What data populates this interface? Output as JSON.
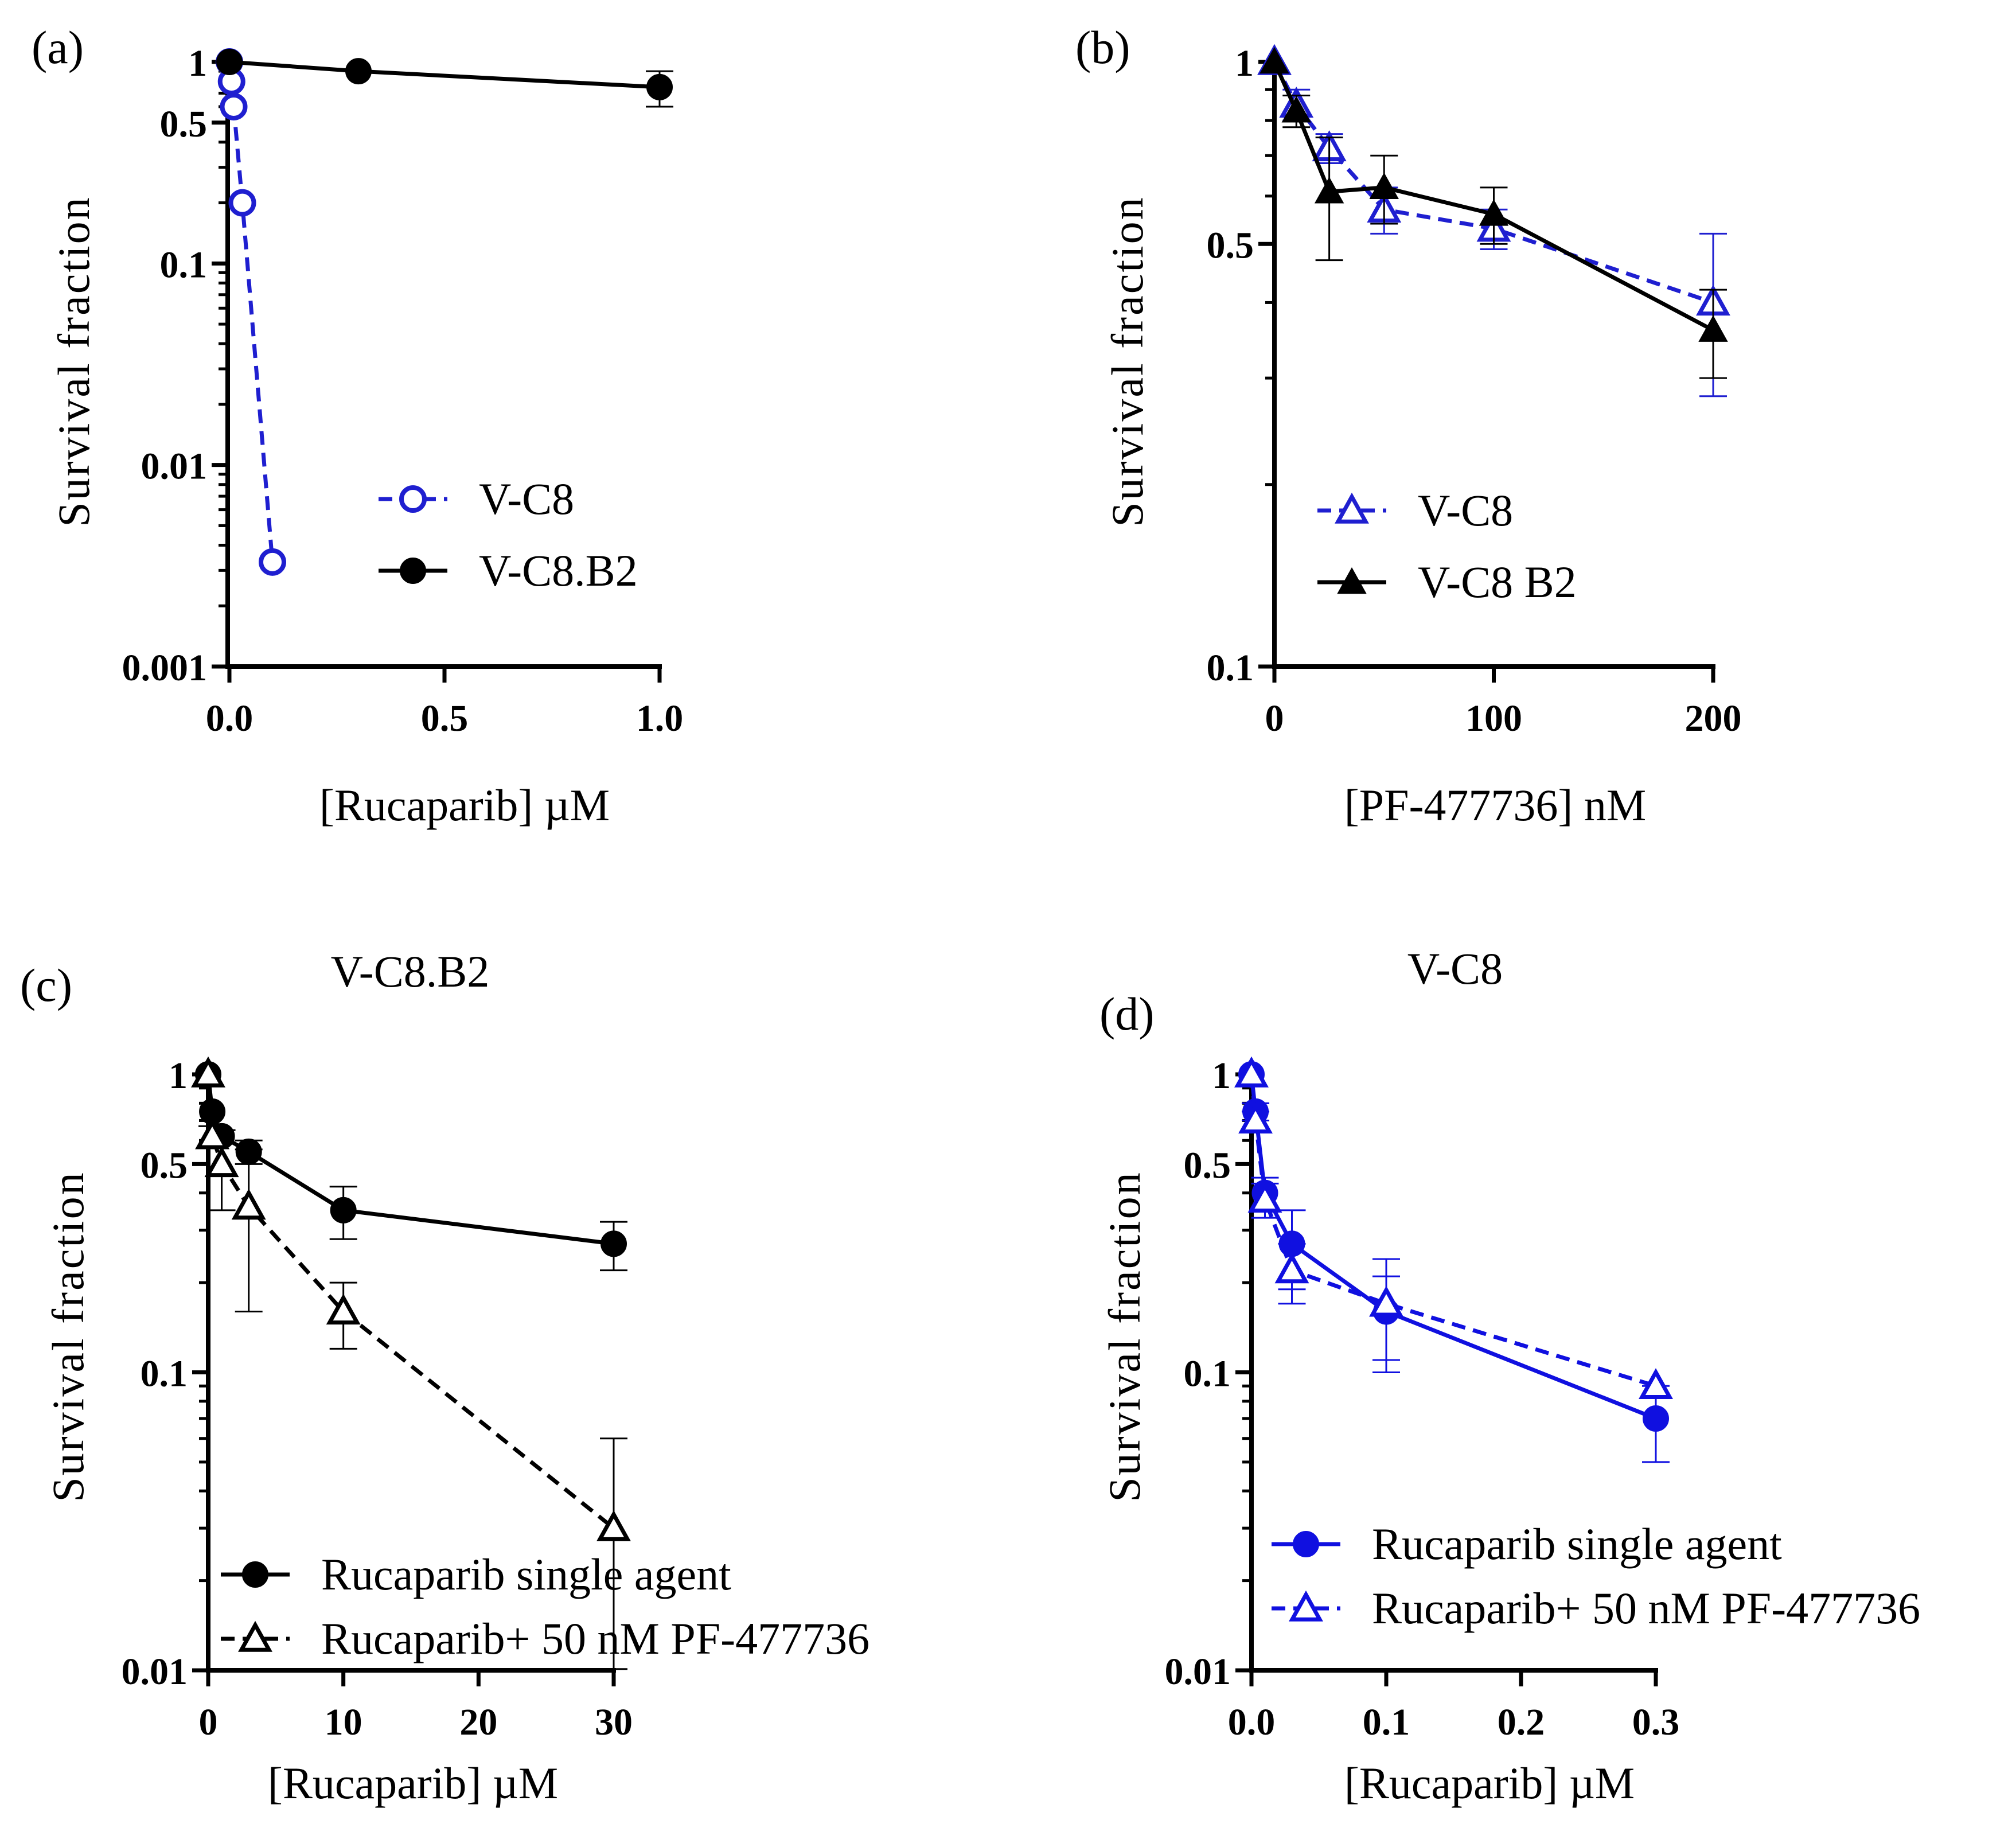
{
  "chart_data": [
    {
      "id": "a",
      "type": "line",
      "panel_label": "(a)",
      "title": "",
      "xlabel": "[Rucaparib] µM",
      "ylabel": "Survival fraction",
      "xscale": "linear",
      "yscale": "log",
      "xlim": [
        0,
        1.0
      ],
      "ylim": [
        0.001,
        1
      ],
      "xticks": [
        0.0,
        0.5,
        1.0
      ],
      "xtick_labels": [
        "0.0",
        "0.5",
        "1.0"
      ],
      "yticks": [
        0.001,
        0.01,
        0.1,
        0.5,
        1
      ],
      "ytick_labels": [
        "0.001",
        "0.01",
        "0.1",
        "0.5",
        "1"
      ],
      "legend_position": "center-right",
      "series": [
        {
          "name": "V-C8",
          "color": "#1f1fd0",
          "dashed": true,
          "marker": "open-circle",
          "x": [
            0,
            0.005,
            0.01,
            0.03,
            0.1
          ],
          "y": [
            1,
            0.8,
            0.6,
            0.2,
            0.0033
          ],
          "err": [
            0,
            0,
            0,
            0,
            0
          ]
        },
        {
          "name": "V-C8.B2",
          "color": "#000000",
          "dashed": false,
          "marker": "filled-circle",
          "x": [
            0,
            0.3,
            1.0
          ],
          "y": [
            1,
            0.9,
            0.75
          ],
          "err": [
            0,
            0,
            0.15
          ]
        }
      ]
    },
    {
      "id": "b",
      "type": "line",
      "panel_label": "(b)",
      "title": "",
      "xlabel": "[PF-477736] nM",
      "ylabel": "Survival fraction",
      "xscale": "linear",
      "yscale": "log",
      "xlim": [
        0,
        200
      ],
      "ylim": [
        0.1,
        1
      ],
      "xticks": [
        0,
        100,
        200
      ],
      "xtick_labels": [
        "0",
        "100",
        "200"
      ],
      "yticks": [
        0.1,
        0.5,
        1
      ],
      "ytick_labels": [
        "0.1",
        "0.5",
        "1"
      ],
      "legend_position": "center-left",
      "series": [
        {
          "name": "V-C8",
          "color": "#1f1fd0",
          "dashed": true,
          "marker": "open-triangle",
          "x": [
            0,
            10,
            25,
            50,
            100,
            200
          ],
          "y": [
            1,
            0.85,
            0.72,
            0.57,
            0.53,
            0.4
          ],
          "err": [
            0,
            0.05,
            0.04,
            0.05,
            0.04,
            0.12
          ]
        },
        {
          "name": "V-C8 B2",
          "color": "#000000",
          "dashed": false,
          "marker": "filled-triangle",
          "x": [
            0,
            10,
            25,
            50,
            100,
            200
          ],
          "y": [
            1,
            0.83,
            0.61,
            0.62,
            0.56,
            0.36
          ],
          "err": [
            0,
            0.05,
            0.14,
            0.08,
            0.06,
            0.06
          ]
        }
      ]
    },
    {
      "id": "c",
      "type": "line",
      "panel_label": "(c)",
      "title": "V-C8.B2",
      "xlabel": "[Rucaparib] µM",
      "ylabel": "Survival fraction",
      "xscale": "linear",
      "yscale": "log",
      "xlim": [
        0,
        30
      ],
      "ylim": [
        0.01,
        1
      ],
      "xticks": [
        0,
        10,
        20,
        30
      ],
      "xtick_labels": [
        "0",
        "10",
        "20",
        "30"
      ],
      "yticks": [
        0.01,
        0.1,
        0.5,
        1
      ],
      "ytick_labels": [
        "0.01",
        "0.1",
        "0.5",
        "1"
      ],
      "legend_position": "bottom-left",
      "series": [
        {
          "name": "Rucaparib single agent",
          "color": "#000000",
          "dashed": false,
          "marker": "filled-circle",
          "x": [
            0,
            0.3,
            1,
            3,
            10,
            30
          ],
          "y": [
            1,
            0.75,
            0.62,
            0.55,
            0.35,
            0.27
          ],
          "err": [
            0,
            0,
            0,
            0.05,
            0.07,
            0.05
          ]
        },
        {
          "name": "Rucaparib+ 50 nM PF-477736",
          "color": "#000000",
          "dashed": true,
          "marker": "open-triangle",
          "x": [
            0,
            0.3,
            1,
            3,
            10,
            30
          ],
          "y": [
            1,
            0.62,
            0.5,
            0.36,
            0.16,
            0.03
          ],
          "err": [
            0,
            0.05,
            0.15,
            0.2,
            0.04,
            0.03
          ]
        }
      ]
    },
    {
      "id": "d",
      "type": "line",
      "panel_label": "(d)",
      "title": "V-C8",
      "xlabel": "[Rucaparib] µM",
      "ylabel": "Survival fraction",
      "xscale": "linear",
      "yscale": "log",
      "xlim": [
        0,
        0.3
      ],
      "ylim": [
        0.01,
        1
      ],
      "xticks": [
        0.0,
        0.1,
        0.2,
        0.3
      ],
      "xtick_labels": [
        "0.0",
        "0.1",
        "0.2",
        "0.3"
      ],
      "yticks": [
        0.01,
        0.1,
        0.5,
        1
      ],
      "ytick_labels": [
        "0.01",
        "0.1",
        "0.5",
        "1"
      ],
      "legend_position": "bottom-left",
      "series": [
        {
          "name": "Rucaparib single agent",
          "color": "#1010e0",
          "dashed": false,
          "marker": "filled-circle",
          "x": [
            0,
            0.003,
            0.01,
            0.03,
            0.1,
            0.3
          ],
          "y": [
            1,
            0.75,
            0.4,
            0.27,
            0.16,
            0.07
          ],
          "err": [
            0,
            0.05,
            0.05,
            0.08,
            0.05,
            0.02
          ]
        },
        {
          "name": "Rucaparib+ 50 nM PF-477736",
          "color": "#1010e0",
          "dashed": true,
          "marker": "open-triangle",
          "x": [
            0,
            0.003,
            0.01,
            0.03,
            0.1,
            0.3
          ],
          "y": [
            1,
            0.7,
            0.38,
            0.22,
            0.17,
            0.09
          ],
          "err": [
            0,
            0.05,
            0.05,
            0.05,
            0.07,
            0
          ]
        }
      ]
    }
  ]
}
